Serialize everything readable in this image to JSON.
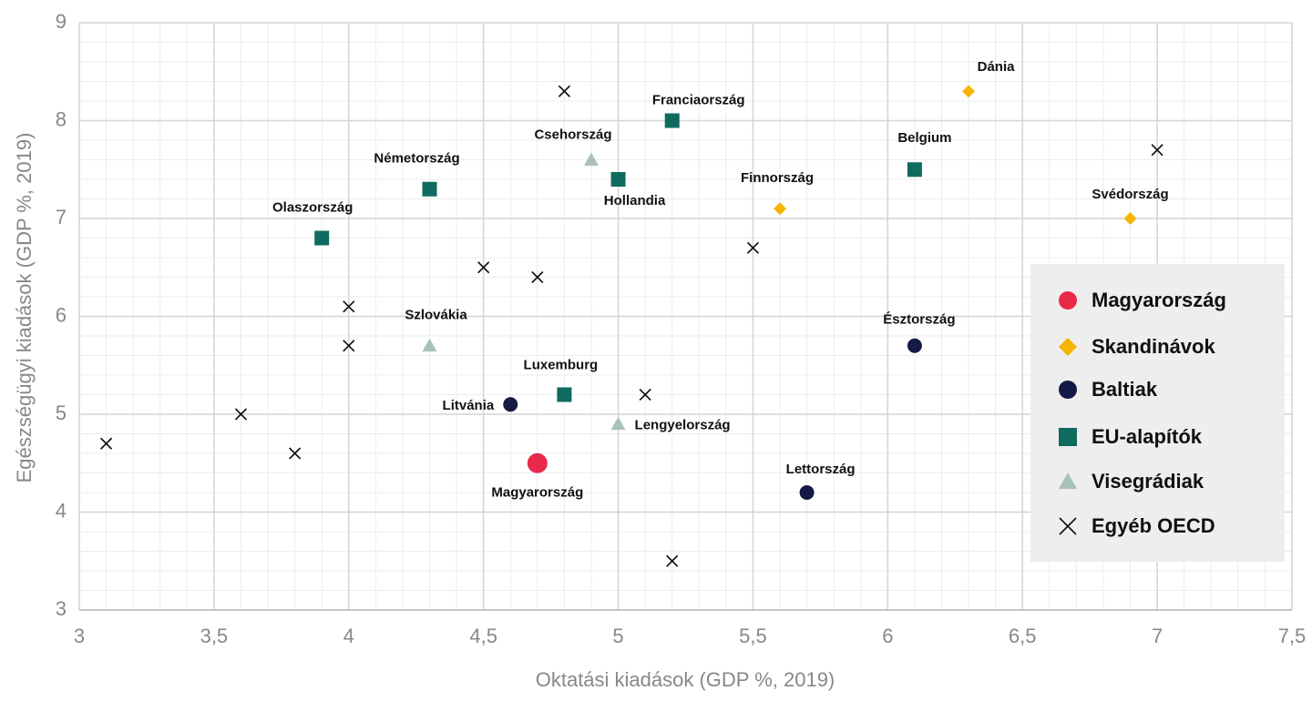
{
  "chart_data": {
    "type": "scatter",
    "x_label": "Oktatási kiadások (GDP %, 2019)",
    "y_label": "Egészségügyi kiadások (GDP %, 2019)",
    "xlim": [
      3,
      7.5
    ],
    "xticks": [
      3,
      {
        "value": 3.5,
        "label": "3,5"
      },
      4,
      {
        "value": 4.5,
        "label": "4,5"
      },
      5,
      {
        "value": 5.5,
        "label": "5,5"
      },
      6,
      {
        "value": 6.5,
        "label": "6,5"
      },
      7,
      {
        "value": 7.5,
        "label": "7,5"
      }
    ],
    "ylim": [
      3,
      9
    ],
    "yticks": [
      3,
      4,
      5,
      6,
      7,
      8,
      9
    ],
    "grid": true,
    "minor_grid": true,
    "legend": "right",
    "series": [
      {
        "name": "Magyarország",
        "color": "#e8294a",
        "marker": "circle",
        "x": [
          4.7
        ],
        "values": [
          4.5
        ],
        "labels": [
          "Magyarország"
        ]
      },
      {
        "name": "Skandinávok",
        "color": "#f5b400",
        "marker": "diamond",
        "x": [
          6.3,
          5.6,
          6.9
        ],
        "values": [
          8.3,
          7.1,
          7.0
        ],
        "labels": [
          "Dánia",
          "Finnország",
          "Svédország"
        ]
      },
      {
        "name": "Baltiak",
        "color": "#141a45",
        "marker": "circle",
        "x": [
          4.6,
          6.1,
          5.7
        ],
        "values": [
          5.1,
          5.7,
          4.2
        ],
        "labels": [
          "Litvánia",
          "Észtország",
          "Lettország"
        ]
      },
      {
        "name": "EU-alapítók",
        "color": "#0f6b5f",
        "marker": "square",
        "x": [
          5.2,
          6.1,
          4.3,
          5.0,
          3.9,
          4.8
        ],
        "values": [
          8.0,
          7.5,
          7.3,
          7.4,
          6.8,
          5.2
        ],
        "labels": [
          "Franciaország",
          "Belgium",
          "Németország",
          "Hollandia",
          "Olaszország",
          "Luxemburg"
        ]
      },
      {
        "name": "Visegrádiak",
        "color": "#a9c1bd",
        "marker": "triangle",
        "x": [
          4.9,
          4.3,
          5.0
        ],
        "values": [
          7.6,
          5.7,
          4.9
        ],
        "labels": [
          "Csehország",
          "Szlovákia",
          "Lengyelország"
        ]
      },
      {
        "name": "Egyéb OECD",
        "color": "#111111",
        "marker": "x",
        "x": [
          4.8,
          7.0,
          5.5,
          4.5,
          4.7,
          4.0,
          4.0,
          5.1,
          3.6,
          3.1,
          3.8,
          5.2
        ],
        "values": [
          8.3,
          7.7,
          6.7,
          6.5,
          6.4,
          6.1,
          5.7,
          5.2,
          5.0,
          4.7,
          4.6,
          3.5
        ]
      }
    ]
  }
}
